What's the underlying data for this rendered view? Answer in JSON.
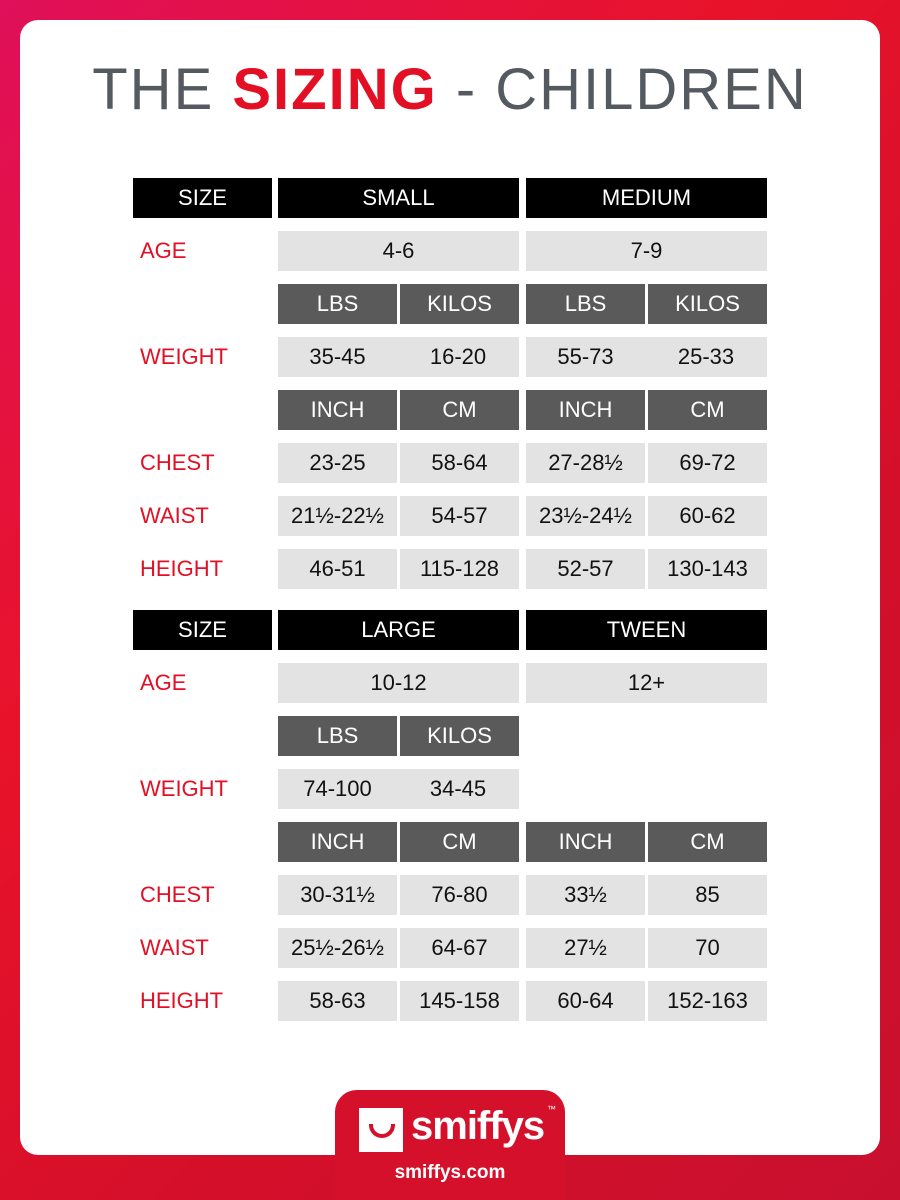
{
  "title": {
    "pre": "THE ",
    "highlight": "SIZING",
    "post": " - CHILDREN"
  },
  "colors": {
    "accent": "#e30f25",
    "header": "#000000",
    "subheader": "#5a5a5a",
    "cell": "#e3e3e3"
  },
  "labels": {
    "size": "SIZE",
    "age": "AGE",
    "weight": "WEIGHT",
    "chest": "CHEST",
    "waist": "WAIST",
    "height": "HEIGHT",
    "lbs": "LBS",
    "kilos": "KILOS",
    "inch": "INCH",
    "cm": "CM"
  },
  "table1": {
    "sizes": [
      "SMALL",
      "MEDIUM"
    ],
    "age": [
      "4-6",
      "7-9"
    ],
    "weight": [
      [
        "35-45",
        "16-20"
      ],
      [
        "55-73",
        "25-33"
      ]
    ],
    "chest": [
      [
        "23-25",
        "58-64"
      ],
      [
        "27-28½",
        "69-72"
      ]
    ],
    "waist": [
      [
        "21½-22½",
        "54-57"
      ],
      [
        "23½-24½",
        "60-62"
      ]
    ],
    "height": [
      [
        "46-51",
        "115-128"
      ],
      [
        "52-57",
        "130-143"
      ]
    ]
  },
  "table2": {
    "sizes": [
      "LARGE",
      "TWEEN"
    ],
    "age": [
      "10-12",
      "12+"
    ],
    "weight": [
      [
        "74-100",
        "34-45"
      ]
    ],
    "chest": [
      [
        "30-31½",
        "76-80"
      ],
      [
        "33½",
        "85"
      ]
    ],
    "waist": [
      [
        "25½-26½",
        "64-67"
      ],
      [
        "27½",
        "70"
      ]
    ],
    "height": [
      [
        "58-63",
        "145-158"
      ],
      [
        "60-64",
        "152-163"
      ]
    ]
  },
  "logo": {
    "brand": "smiffys",
    "tm": "™",
    "url": "smiffys.com"
  }
}
